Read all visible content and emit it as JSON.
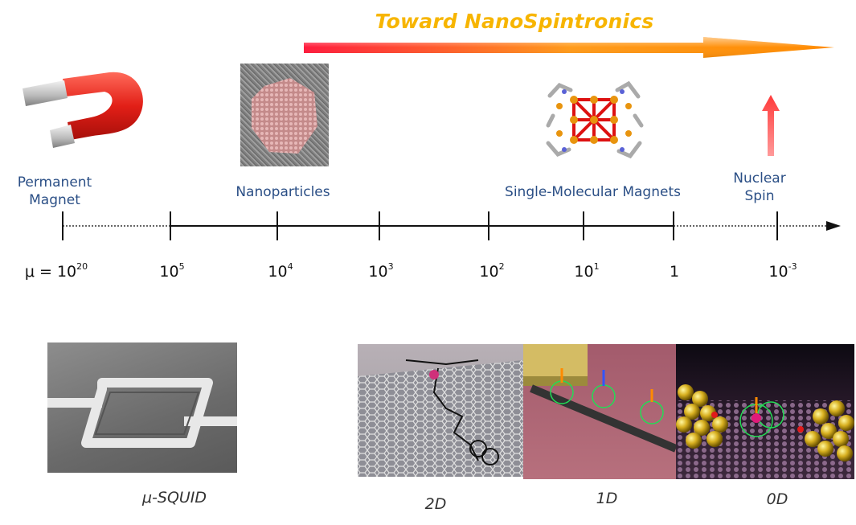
{
  "header": {
    "title": "Toward NanoSpintronics"
  },
  "categories": {
    "permanent_magnet": "Permanent\nMagnet",
    "nanoparticles": "Nanoparticles",
    "smm": "Single-Molecular Magnets",
    "nuclear_spin": "Nuclear\nSpin"
  },
  "axis": {
    "ticks": [
      {
        "base": "μ = 10",
        "exp": "20"
      },
      {
        "base": "10",
        "exp": "5"
      },
      {
        "base": "10",
        "exp": "4"
      },
      {
        "base": "10",
        "exp": "3"
      },
      {
        "base": "10",
        "exp": "2"
      },
      {
        "base": "10",
        "exp": "1"
      },
      {
        "base": "1",
        "exp": ""
      },
      {
        "base": "10",
        "exp": "-3"
      }
    ]
  },
  "captions": {
    "squid": "μ-SQUID",
    "two_d": "2D",
    "one_d": "1D",
    "zero_d": "0D"
  },
  "colors": {
    "title": "#f7b500",
    "label": "#2b4f86",
    "arrow_start": "#ff2a3a",
    "arrow_end": "#ff8a00"
  }
}
